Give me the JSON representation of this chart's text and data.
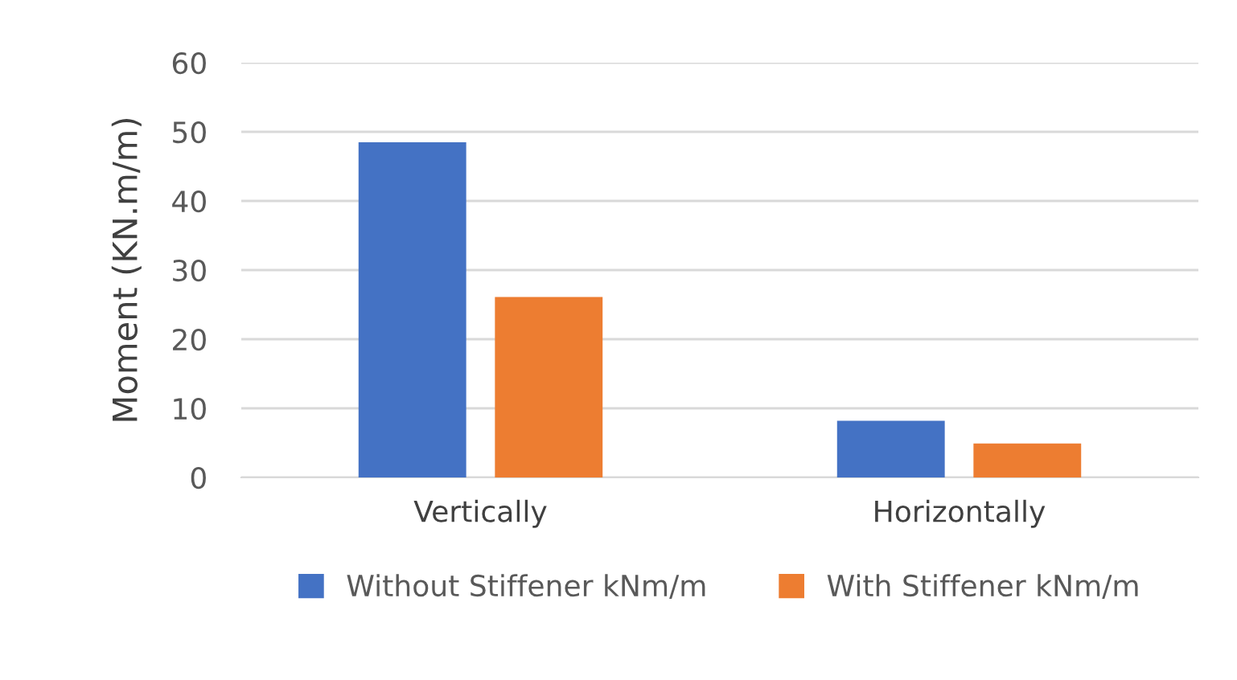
{
  "chart_data": {
    "type": "bar",
    "ylabel": "Moment (KN.m/m)",
    "categories": [
      "Vertically",
      "Horizontally"
    ],
    "series": [
      {
        "name": "Without Stiffener kNm/m",
        "color": "#4472c4",
        "values": [
          48.5,
          8.2
        ]
      },
      {
        "name": "With Stiffener kNm/m",
        "color": "#ed7d31",
        "values": [
          26.1,
          4.9
        ]
      }
    ],
    "ylim": [
      0,
      60
    ],
    "yticks": [
      0,
      10,
      20,
      30,
      40,
      50,
      60
    ],
    "grid": "y",
    "legend": "bottom"
  }
}
